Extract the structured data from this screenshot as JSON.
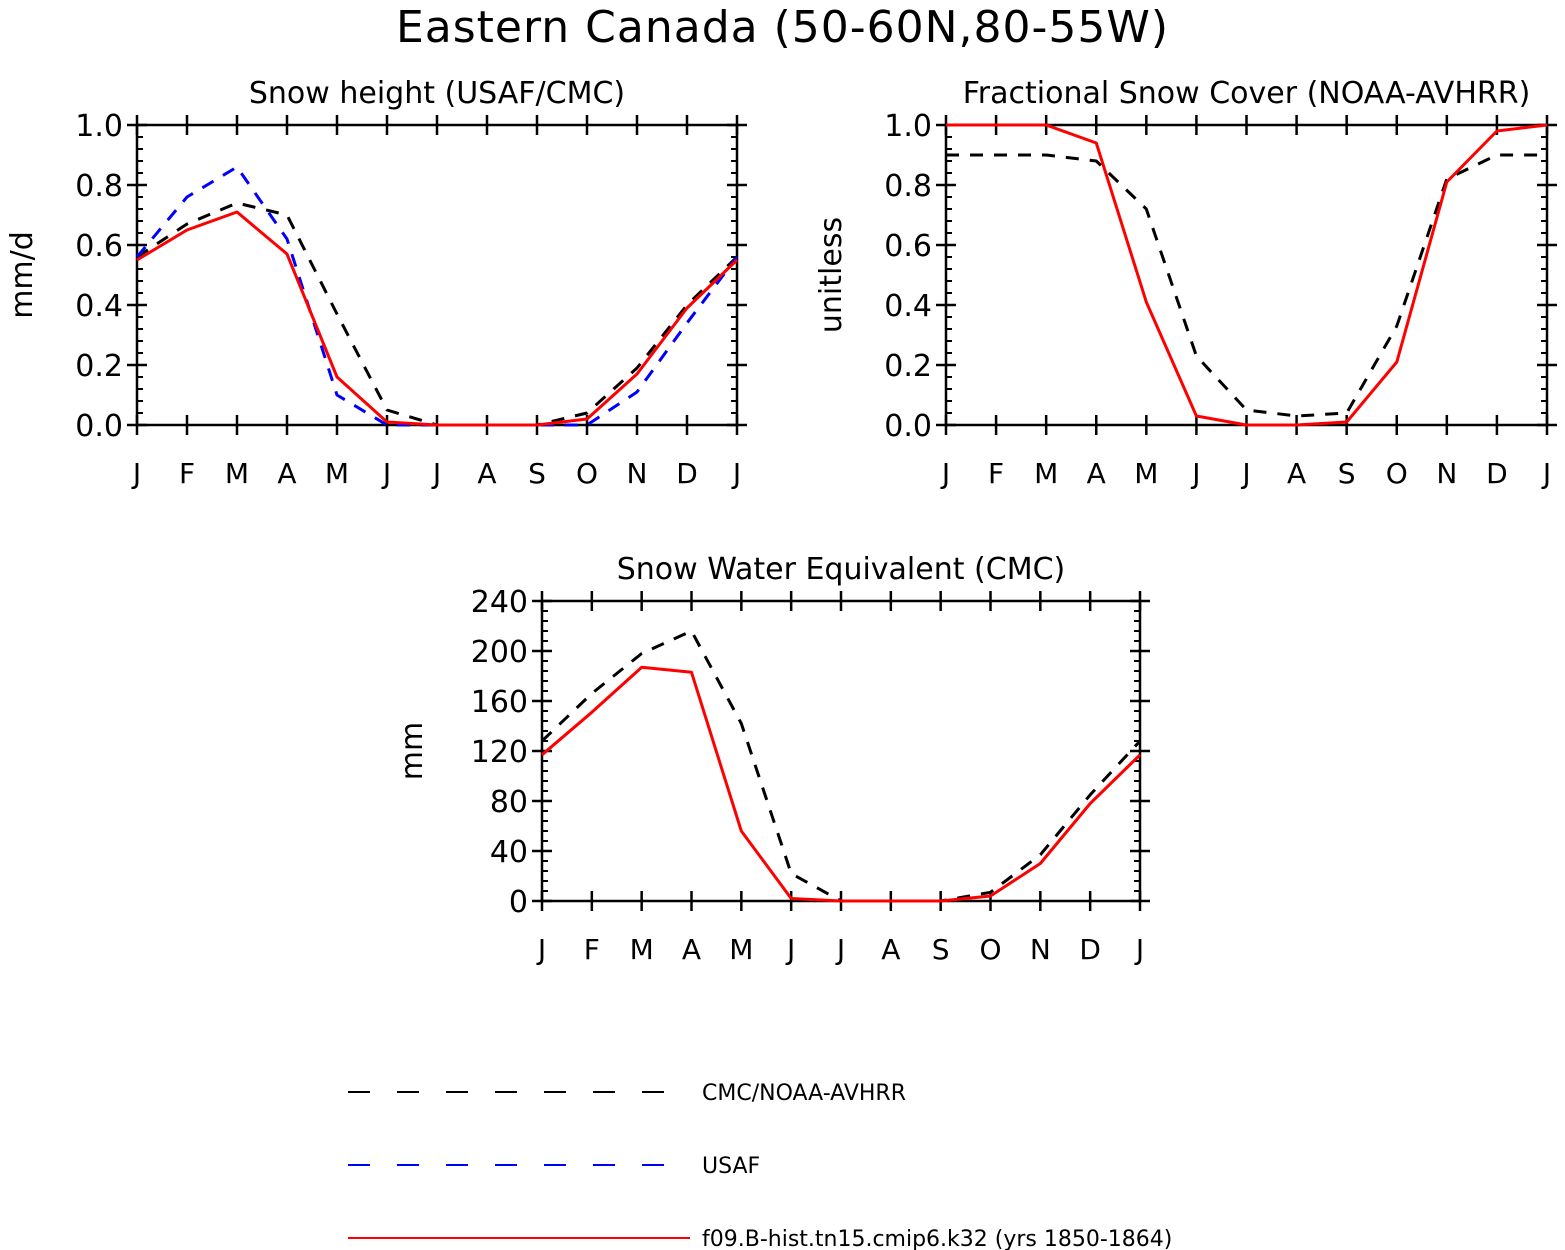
{
  "figure": {
    "title": "Eastern Canada (50-60N,80-55W)"
  },
  "colors": {
    "obs": "#000000",
    "usaf": "#0000ff",
    "model": "#ff0000"
  },
  "legend": {
    "entries": [
      {
        "label": "CMC/NOAA-AVHRR",
        "color": "#000000",
        "dash": "dashed"
      },
      {
        "label": "USAF",
        "color": "#0000ff",
        "dash": "dashed"
      },
      {
        "label": "f09.B-hist.tn15.cmip6.k32 (yrs 1850-1864)",
        "color": "#ff0000",
        "dash": "solid"
      }
    ]
  },
  "chart_data": [
    {
      "type": "line",
      "title": "Snow height (USAF/CMC)",
      "ylabel": "mm/d",
      "xlabel": "",
      "x": [
        "J",
        "F",
        "M",
        "A",
        "M",
        "J",
        "J",
        "A",
        "S",
        "O",
        "N",
        "D",
        "J"
      ],
      "ylim": [
        0,
        1.0
      ],
      "yticks": [
        "0.0",
        "0.2",
        "0.4",
        "0.6",
        "0.8",
        "1.0"
      ],
      "grid": false,
      "series": [
        {
          "name": "CMC/NOAA-AVHRR",
          "color": "#000000",
          "dash": "dashed",
          "values": [
            0.56,
            0.67,
            0.74,
            0.7,
            0.37,
            0.05,
            0.0,
            0.0,
            0.0,
            0.04,
            0.19,
            0.4,
            0.56
          ]
        },
        {
          "name": "USAF",
          "color": "#0000ff",
          "dash": "dashed",
          "values": [
            0.56,
            0.76,
            0.86,
            0.62,
            0.1,
            0.0,
            0.0,
            0.0,
            0.0,
            0.0,
            0.11,
            0.34,
            0.56
          ]
        },
        {
          "name": "f09.B-hist.tn15.cmip6.k32 (yrs 1850-1864)",
          "color": "#ff0000",
          "dash": "solid",
          "values": [
            0.55,
            0.65,
            0.71,
            0.57,
            0.16,
            0.01,
            0.0,
            0.0,
            0.0,
            0.02,
            0.17,
            0.39,
            0.55
          ]
        }
      ]
    },
    {
      "type": "line",
      "title": "Fractional Snow Cover (NOAA-AVHRR)",
      "ylabel": "unitless",
      "xlabel": "",
      "x": [
        "J",
        "F",
        "M",
        "A",
        "M",
        "J",
        "J",
        "A",
        "S",
        "O",
        "N",
        "D",
        "J"
      ],
      "ylim": [
        0,
        1.0
      ],
      "yticks": [
        "0.0",
        "0.2",
        "0.4",
        "0.6",
        "0.8",
        "1.0"
      ],
      "grid": false,
      "series": [
        {
          "name": "CMC/NOAA-AVHRR",
          "color": "#000000",
          "dash": "dashed",
          "values": [
            0.9,
            0.9,
            0.9,
            0.88,
            0.72,
            0.23,
            0.05,
            0.03,
            0.04,
            0.33,
            0.82,
            0.9,
            0.9
          ]
        },
        {
          "name": "f09.B-hist.tn15.cmip6.k32 (yrs 1850-1864)",
          "color": "#ff0000",
          "dash": "solid",
          "values": [
            1.0,
            1.0,
            1.0,
            0.94,
            0.41,
            0.03,
            0.0,
            0.0,
            0.01,
            0.21,
            0.81,
            0.98,
            1.0
          ]
        }
      ]
    },
    {
      "type": "line",
      "title": "Snow Water Equivalent (CMC)",
      "ylabel": "mm",
      "xlabel": "",
      "x": [
        "J",
        "F",
        "M",
        "A",
        "M",
        "J",
        "J",
        "A",
        "S",
        "O",
        "N",
        "D",
        "J"
      ],
      "ylim": [
        0,
        240
      ],
      "yticks": [
        "0",
        "40",
        "80",
        "120",
        "160",
        "200",
        "240"
      ],
      "grid": false,
      "series": [
        {
          "name": "CMC/NOAA-AVHRR",
          "color": "#000000",
          "dash": "dashed",
          "values": [
            128,
            166,
            198,
            216,
            142,
            22,
            0,
            0,
            0,
            7,
            37,
            85,
            128
          ]
        },
        {
          "name": "f09.B-hist.tn15.cmip6.k32 (yrs 1850-1864)",
          "color": "#ff0000",
          "dash": "solid",
          "values": [
            117,
            151,
            187,
            183,
            56,
            2,
            0,
            0,
            0,
            4,
            30,
            78,
            117
          ]
        }
      ]
    }
  ]
}
